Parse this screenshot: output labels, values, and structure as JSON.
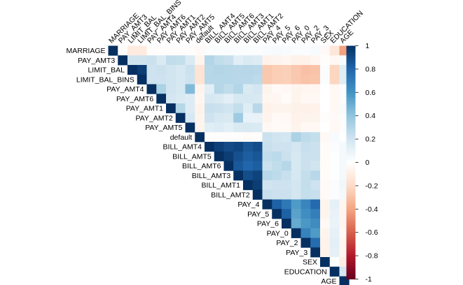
{
  "chart_data": {
    "type": "heatmap",
    "title": "",
    "subtitle": "",
    "layout": "upper-triangular correlation matrix",
    "variables": [
      "MARRIAGE",
      "PAY_AMT3",
      "LIMIT_BAL",
      "LIMIT_BAL_BINS",
      "PAY_AMT4",
      "PAY_AMT6",
      "PAY_AMT1",
      "PAY_AMT2",
      "PAY_AMT5",
      "default",
      "BILL_AMT4",
      "BILL_AMT5",
      "BILL_AMT6",
      "BILL_AMT3",
      "BILL_AMT1",
      "BILL_AMT2",
      "PAY_4",
      "PAY_5",
      "PAY_6",
      "PAY_0",
      "PAY_2",
      "PAY_3",
      "SEX",
      "EDUCATION",
      "AGE"
    ],
    "matrix": [
      [
        1.0,
        -0.01,
        -0.11,
        -0.11,
        -0.01,
        -0.01,
        -0.01,
        -0.01,
        -0.01,
        -0.03,
        0.02,
        0.02,
        0.02,
        0.02,
        0.02,
        0.02,
        0.03,
        0.04,
        0.03,
        0.02,
        0.02,
        0.03,
        -0.03,
        -0.14,
        -0.41
      ],
      [
        null,
        1.0,
        0.21,
        0.21,
        0.22,
        0.16,
        0.25,
        0.24,
        0.16,
        -0.06,
        0.3,
        0.25,
        0.23,
        0.13,
        0.16,
        0.15,
        -0.07,
        -0.06,
        -0.05,
        -0.07,
        -0.07,
        -0.05,
        -0.01,
        -0.04,
        0.03
      ],
      [
        null,
        null,
        1.0,
        0.95,
        0.21,
        0.22,
        0.2,
        0.18,
        0.22,
        -0.15,
        0.29,
        0.3,
        0.29,
        0.28,
        0.29,
        0.28,
        -0.27,
        -0.25,
        -0.24,
        -0.27,
        -0.3,
        -0.29,
        0.02,
        -0.22,
        0.14
      ],
      [
        null,
        null,
        null,
        1.0,
        0.21,
        0.21,
        0.2,
        0.18,
        0.21,
        -0.15,
        0.29,
        0.29,
        0.29,
        0.28,
        0.28,
        0.27,
        -0.27,
        -0.25,
        -0.24,
        -0.27,
        -0.29,
        -0.28,
        0.02,
        -0.22,
        0.14
      ],
      [
        null,
        null,
        null,
        null,
        1.0,
        0.32,
        0.2,
        0.18,
        0.44,
        -0.06,
        0.13,
        0.29,
        0.25,
        0.3,
        0.16,
        0.19,
        -0.06,
        -0.03,
        -0.04,
        -0.06,
        -0.05,
        -0.05,
        0.0,
        -0.04,
        0.02
      ],
      [
        null,
        null,
        null,
        null,
        null,
        1.0,
        0.19,
        0.16,
        0.15,
        -0.05,
        0.18,
        0.16,
        0.12,
        0.18,
        0.18,
        0.17,
        -0.05,
        -0.05,
        -0.02,
        -0.06,
        -0.04,
        -0.04,
        0.0,
        -0.04,
        0.02
      ],
      [
        null,
        null,
        null,
        null,
        null,
        null,
        1.0,
        0.29,
        0.15,
        -0.07,
        0.23,
        0.22,
        0.2,
        0.24,
        0.14,
        0.28,
        -0.07,
        -0.06,
        -0.06,
        -0.08,
        -0.08,
        -0.07,
        0.0,
        -0.04,
        0.03
      ],
      [
        null,
        null,
        null,
        null,
        null,
        null,
        null,
        1.0,
        0.18,
        -0.06,
        0.21,
        0.18,
        0.17,
        0.36,
        0.1,
        0.1,
        -0.06,
        -0.03,
        -0.04,
        -0.07,
        -0.06,
        -0.06,
        -0.01,
        -0.03,
        0.02
      ],
      [
        null,
        null,
        null,
        null,
        null,
        null,
        null,
        null,
        1.0,
        -0.06,
        0.14,
        0.15,
        0.12,
        0.16,
        0.17,
        0.16,
        -0.04,
        -0.03,
        -0.03,
        -0.06,
        -0.04,
        -0.04,
        0.0,
        -0.04,
        0.02
      ],
      [
        null,
        null,
        null,
        null,
        null,
        null,
        null,
        null,
        null,
        1.0,
        -0.01,
        -0.01,
        -0.01,
        -0.01,
        -0.02,
        -0.01,
        0.22,
        0.2,
        0.19,
        0.32,
        0.26,
        0.24,
        -0.04,
        0.03,
        0.01
      ],
      [
        null,
        null,
        null,
        null,
        null,
        null,
        null,
        null,
        null,
        null,
        1.0,
        0.94,
        0.9,
        0.92,
        0.86,
        0.89,
        0.23,
        0.21,
        0.21,
        0.19,
        0.23,
        0.22,
        -0.02,
        0.02,
        0.05
      ],
      [
        null,
        null,
        null,
        null,
        null,
        null,
        null,
        null,
        null,
        null,
        null,
        1.0,
        0.95,
        0.88,
        0.83,
        0.86,
        0.25,
        0.27,
        0.22,
        0.18,
        0.22,
        0.22,
        -0.02,
        0.01,
        0.05
      ],
      [
        null,
        null,
        null,
        null,
        null,
        null,
        null,
        null,
        null,
        null,
        null,
        null,
        1.0,
        0.85,
        0.8,
        0.83,
        0.22,
        0.25,
        0.29,
        0.18,
        0.22,
        0.2,
        -0.02,
        0.01,
        0.05
      ],
      [
        null,
        null,
        null,
        null,
        null,
        null,
        null,
        null,
        null,
        null,
        null,
        null,
        null,
        1.0,
        0.89,
        0.93,
        0.28,
        0.26,
        0.23,
        0.18,
        0.24,
        0.28,
        -0.02,
        0.01,
        0.05
      ],
      [
        null,
        null,
        null,
        null,
        null,
        null,
        null,
        null,
        null,
        null,
        null,
        null,
        null,
        null,
        1.0,
        0.95,
        0.2,
        0.21,
        0.21,
        0.19,
        0.24,
        0.21,
        -0.03,
        0.02,
        0.06
      ],
      [
        null,
        null,
        null,
        null,
        null,
        null,
        null,
        null,
        null,
        null,
        null,
        null,
        null,
        null,
        null,
        1.0,
        0.23,
        0.22,
        0.22,
        0.19,
        0.24,
        0.23,
        -0.03,
        0.02,
        0.05
      ],
      [
        null,
        null,
        null,
        null,
        null,
        null,
        null,
        null,
        null,
        null,
        null,
        null,
        null,
        null,
        null,
        null,
        1.0,
        0.82,
        0.72,
        0.57,
        0.66,
        0.78,
        -0.06,
        0.11,
        -0.05
      ],
      [
        null,
        null,
        null,
        null,
        null,
        null,
        null,
        null,
        null,
        null,
        null,
        null,
        null,
        null,
        null,
        null,
        null,
        1.0,
        0.82,
        0.54,
        0.62,
        0.69,
        -0.06,
        0.1,
        -0.05
      ],
      [
        null,
        null,
        null,
        null,
        null,
        null,
        null,
        null,
        null,
        null,
        null,
        null,
        null,
        null,
        null,
        null,
        null,
        null,
        1.0,
        0.51,
        0.58,
        0.63,
        -0.04,
        0.09,
        -0.05
      ],
      [
        null,
        null,
        null,
        null,
        null,
        null,
        null,
        null,
        null,
        null,
        null,
        null,
        null,
        null,
        null,
        null,
        null,
        null,
        null,
        1.0,
        0.67,
        0.57,
        -0.06,
        0.11,
        -0.04
      ],
      [
        null,
        null,
        null,
        null,
        null,
        null,
        null,
        null,
        null,
        null,
        null,
        null,
        null,
        null,
        null,
        null,
        null,
        null,
        null,
        null,
        1.0,
        0.77,
        -0.07,
        0.12,
        -0.05
      ],
      [
        null,
        null,
        null,
        null,
        null,
        null,
        null,
        null,
        null,
        null,
        null,
        null,
        null,
        null,
        null,
        null,
        null,
        null,
        null,
        null,
        null,
        1.0,
        -0.07,
        0.11,
        -0.05
      ],
      [
        null,
        null,
        null,
        null,
        null,
        null,
        null,
        null,
        null,
        null,
        null,
        null,
        null,
        null,
        null,
        null,
        null,
        null,
        null,
        null,
        null,
        null,
        1.0,
        0.01,
        -0.09
      ],
      [
        null,
        null,
        null,
        null,
        null,
        null,
        null,
        null,
        null,
        null,
        null,
        null,
        null,
        null,
        null,
        null,
        null,
        null,
        null,
        null,
        null,
        null,
        null,
        1.0,
        0.18
      ],
      [
        null,
        null,
        null,
        null,
        null,
        null,
        null,
        null,
        null,
        null,
        null,
        null,
        null,
        null,
        null,
        null,
        null,
        null,
        null,
        null,
        null,
        null,
        null,
        null,
        1.0
      ]
    ],
    "colorbar": {
      "range": [
        -1,
        1
      ],
      "ticks": [
        "1",
        "0.8",
        "0.6",
        "0.4",
        "0.2",
        "0",
        "-0.2",
        "-0.4",
        "-0.6",
        "-0.8",
        "-1"
      ],
      "tick_values": [
        1,
        0.8,
        0.6,
        0.4,
        0.2,
        0,
        -0.2,
        -0.4,
        -0.6,
        -0.8,
        -1
      ],
      "palette": [
        "#67001f",
        "#b2182b",
        "#d6604d",
        "#f4a582",
        "#fddbc7",
        "#ffffff",
        "#d1e5f0",
        "#92c5de",
        "#4393c3",
        "#2166ac",
        "#053061"
      ]
    },
    "grid": false,
    "legend": "right colorbar"
  }
}
